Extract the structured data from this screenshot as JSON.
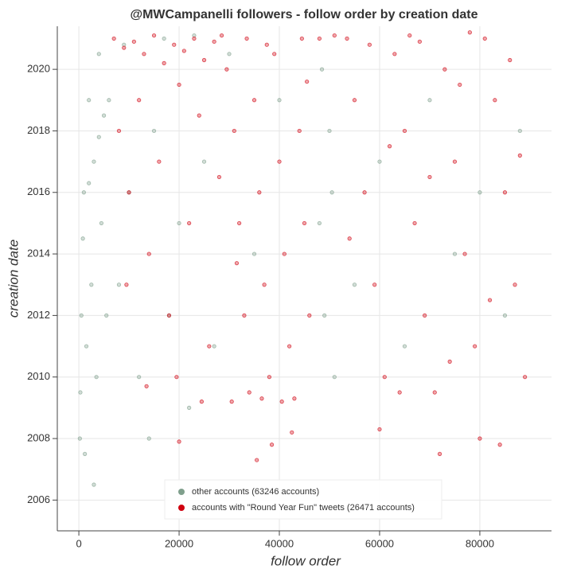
{
  "chart_data": {
    "type": "scatter",
    "title": "@MWCampanelli followers - follow order by creation date",
    "x_label": "follow order",
    "y_label": "creation date",
    "xlim": [
      -4300,
      94300
    ],
    "ylim": [
      2005,
      2021.4
    ],
    "xticks": [
      0,
      20000,
      40000,
      60000,
      80000
    ],
    "yticks": [
      2006,
      2008,
      2010,
      2012,
      2014,
      2016,
      2018,
      2020
    ],
    "grid": true,
    "legend": "lower center",
    "series": [
      {
        "name": "other accounts (63246 accounts)",
        "color": "#7f9f8c",
        "x": [
          300,
          500,
          800,
          1000,
          1500,
          2000,
          2500,
          3000,
          3500,
          4000,
          4500,
          5000,
          5500,
          6000,
          200,
          1200,
          8000,
          10000,
          12000,
          15000,
          18000,
          20000,
          22000,
          25000,
          27000,
          30000,
          35000,
          40000,
          48000,
          49000,
          50000,
          51000,
          48500,
          50500,
          55000,
          60000,
          65000,
          70000,
          75000,
          80000,
          85000,
          88000,
          3000,
          14000,
          9000,
          17000,
          23000,
          2000,
          4000
        ],
        "values": [
          2009.5,
          2012,
          2014.5,
          2016,
          2011,
          2016.3,
          2013,
          2017,
          2010,
          2017.8,
          2015,
          2018.5,
          2012,
          2019,
          2008,
          2007.5,
          2013,
          2016,
          2010,
          2018,
          2012,
          2015,
          2009,
          2017,
          2011,
          2020.5,
          2014,
          2019,
          2015,
          2012,
          2018,
          2010,
          2020,
          2016,
          2013,
          2017,
          2011,
          2019,
          2014,
          2016,
          2012,
          2018,
          2006.5,
          2008,
          2020.8,
          2021,
          2021.1,
          2019,
          2020.5
        ]
      },
      {
        "name": "accounts with \"Round Year Fun\" tweets (26471 accounts)",
        "color": "#d0000f",
        "x": [
          7000,
          9000,
          11000,
          13000,
          15000,
          17000,
          19000,
          21000,
          23000,
          25000,
          27000,
          28500,
          8000,
          10000,
          12000,
          14000,
          16000,
          18000,
          20000,
          22000,
          24000,
          26000,
          28000,
          9500,
          19500,
          20000,
          13500,
          24500,
          29500,
          31000,
          32000,
          33000,
          34000,
          35000,
          36000,
          37000,
          38000,
          39000,
          40000,
          41000,
          42000,
          43000,
          44000,
          45000,
          46000,
          30500,
          33500,
          36500,
          40500,
          44500,
          35500,
          38500,
          42500,
          31500,
          37500,
          45500,
          53500,
          55000,
          57000,
          59000,
          61000,
          63000,
          65000,
          67000,
          69000,
          71000,
          73000,
          75000,
          77000,
          79000,
          81000,
          83000,
          85000,
          87000,
          89000,
          54000,
          58000,
          62000,
          66000,
          70000,
          74000,
          78000,
          82000,
          86000,
          88000,
          60000,
          72000,
          80000,
          84000,
          64000,
          76000,
          68000,
          48000,
          51000
        ],
        "values": [
          2021,
          2020.7,
          2020.9,
          2020.5,
          2021.1,
          2020.2,
          2020.8,
          2020.6,
          2021,
          2020.3,
          2020.9,
          2021.1,
          2018,
          2016,
          2019,
          2014,
          2017,
          2012,
          2019.5,
          2015,
          2018.5,
          2011,
          2016.5,
          2013,
          2010,
          2007.9,
          2009.7,
          2009.2,
          2020,
          2018,
          2015,
          2012,
          2009.5,
          2019,
          2016,
          2013,
          2010,
          2020.5,
          2017,
          2014,
          2011,
          2009.3,
          2018,
          2015,
          2012,
          2009.2,
          2021,
          2009.3,
          2009.2,
          2021,
          2007.3,
          2007.8,
          2008.2,
          2013.7,
          2020.8,
          2019.6,
          2021,
          2019,
          2016,
          2013,
          2010,
          2020.5,
          2018,
          2015,
          2012,
          2009.5,
          2020,
          2017,
          2014,
          2011,
          2021,
          2019,
          2016,
          2013,
          2010,
          2014.5,
          2020.8,
          2017.5,
          2021.1,
          2016.5,
          2010.5,
          2021.2,
          2012.5,
          2020.3,
          2017.2,
          2008.3,
          2007.5,
          2008,
          2007.8,
          2009.5,
          2019.5,
          2020.9,
          2021,
          2021.1
        ]
      }
    ]
  }
}
